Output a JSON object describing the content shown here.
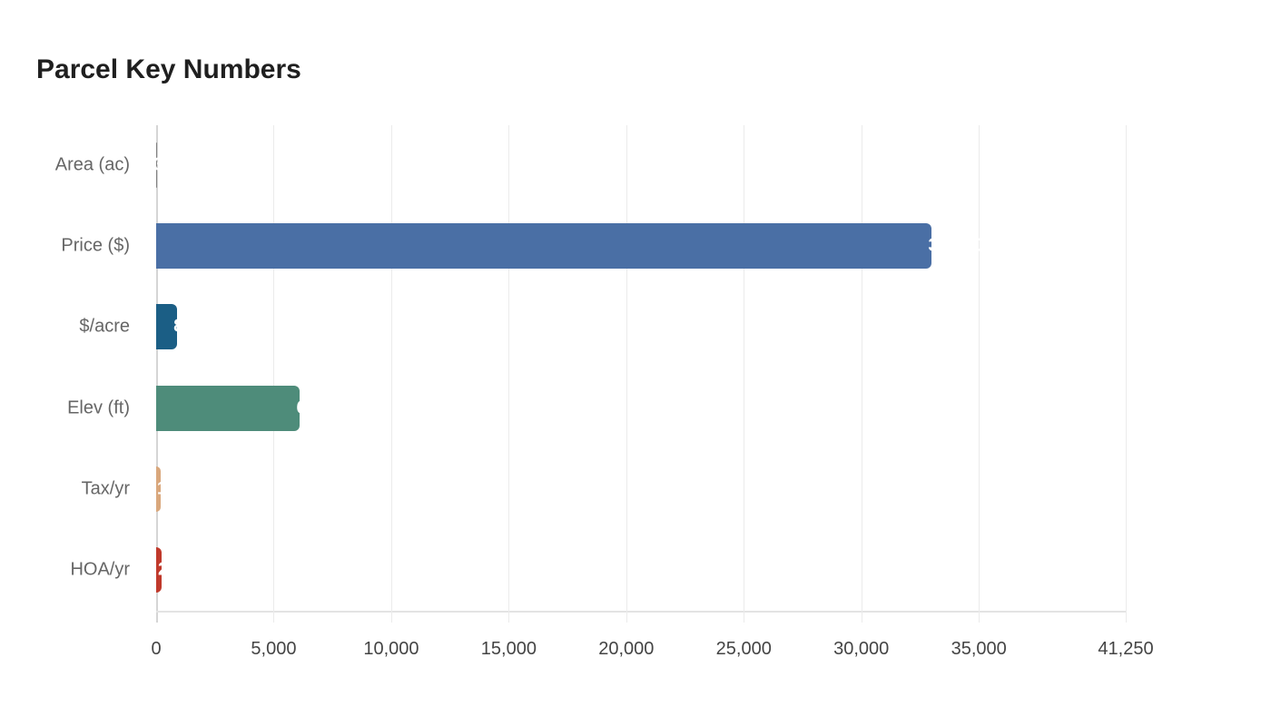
{
  "title": "Parcel Key Numbers",
  "chart_data": {
    "type": "bar",
    "orientation": "horizontal",
    "title": "Parcel Key Numbers",
    "xlabel": "",
    "ylabel": "",
    "categories": [
      "Area (ac)",
      "Price ($)",
      "$/acre",
      "Elev (ft)",
      "Tax/yr",
      "HOA/yr"
    ],
    "values": [
      37,
      33000,
      892,
      6120,
      190,
      230
    ],
    "colors": [
      "#7f7f7f",
      "#4a6fa5",
      "#1b5e85",
      "#4e8c7a",
      "#d9a77c",
      "#c0392b"
    ],
    "xlim": [
      0,
      41250
    ],
    "xticks": [
      "0",
      "5,000",
      "10,000",
      "15,000",
      "20,000",
      "25,000",
      "30,000",
      "35,000",
      "41,250"
    ],
    "xtick_values": [
      0,
      5000,
      10000,
      15000,
      20000,
      25000,
      30000,
      35000,
      41250
    ],
    "grid": true,
    "legend": "none",
    "data_labels": "white, inside bar end (mostly clipped)"
  },
  "labels": {
    "bars": [
      "37",
      "33,000",
      "892",
      "6,120",
      "190",
      "230"
    ]
  }
}
